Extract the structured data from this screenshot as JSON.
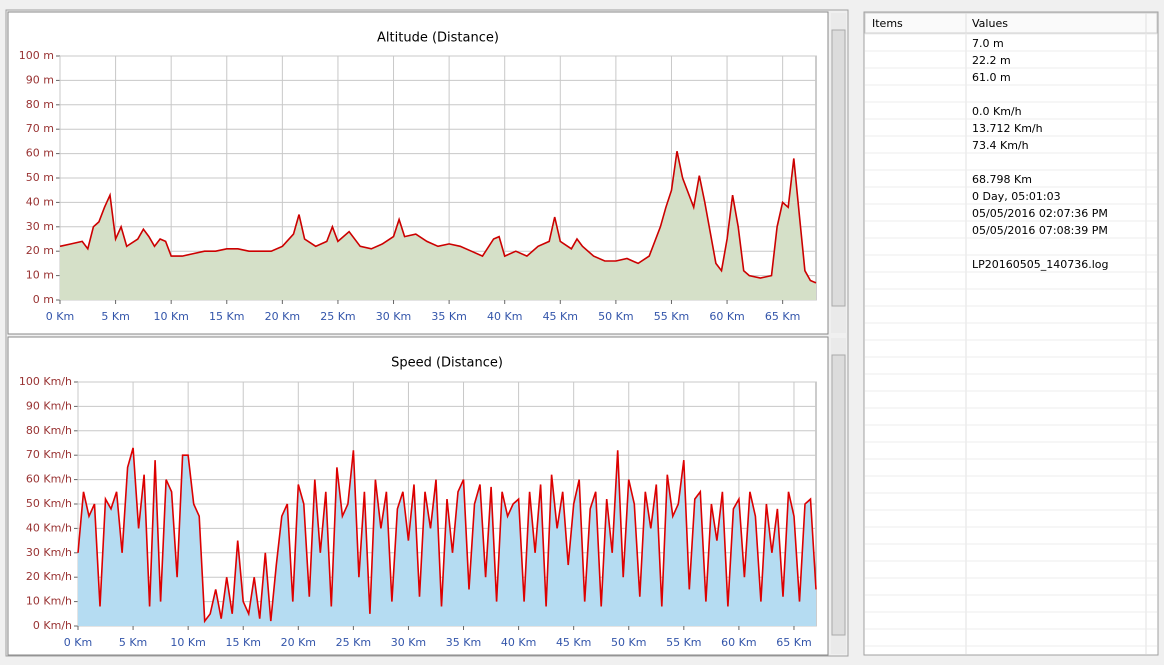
{
  "chart_data": [
    {
      "type": "line",
      "title": "Altitude (Distance)",
      "line_color": "#cc0000",
      "fill_color": "#d5e0c8",
      "grid": true,
      "xlim": [
        0,
        68
      ],
      "ylim": [
        0,
        100
      ],
      "xticks": [
        {
          "value": 0,
          "label": "0 Km"
        },
        {
          "value": 5,
          "label": "5 Km"
        },
        {
          "value": 10,
          "label": "10 Km"
        },
        {
          "value": 15,
          "label": "15 Km"
        },
        {
          "value": 20,
          "label": "20 Km"
        },
        {
          "value": 25,
          "label": "25 Km"
        },
        {
          "value": 30,
          "label": "30 Km"
        },
        {
          "value": 35,
          "label": "35 Km"
        },
        {
          "value": 40,
          "label": "40 Km"
        },
        {
          "value": 45,
          "label": "45 Km"
        },
        {
          "value": 50,
          "label": "50 Km"
        },
        {
          "value": 55,
          "label": "55 Km"
        },
        {
          "value": 60,
          "label": "60 Km"
        },
        {
          "value": 65,
          "label": "65 Km"
        }
      ],
      "yticks": [
        {
          "value": 0,
          "label": "0 m"
        },
        {
          "value": 10,
          "label": "10 m"
        },
        {
          "value": 20,
          "label": "20 m"
        },
        {
          "value": 30,
          "label": "30 m"
        },
        {
          "value": 40,
          "label": "40 m"
        },
        {
          "value": 50,
          "label": "50 m"
        },
        {
          "value": 60,
          "label": "60 m"
        },
        {
          "value": 70,
          "label": "70 m"
        },
        {
          "value": 80,
          "label": "80 m"
        },
        {
          "value": 90,
          "label": "90 m"
        },
        {
          "value": 100,
          "label": "100 m"
        }
      ],
      "x": [
        0,
        1,
        2,
        2.5,
        3,
        3.5,
        4,
        4.5,
        5,
        5.5,
        6,
        7,
        7.5,
        8,
        8.5,
        9,
        9.5,
        10,
        11,
        12,
        13,
        14,
        15,
        16,
        17,
        18,
        19,
        20,
        21,
        21.5,
        22,
        23,
        24,
        24.5,
        25,
        26,
        27,
        28,
        29,
        30,
        30.5,
        31,
        32,
        33,
        34,
        35,
        36,
        37,
        38,
        39,
        39.5,
        40,
        41,
        42,
        43,
        44,
        44.5,
        45,
        46,
        46.5,
        47,
        48,
        49,
        50,
        51,
        52,
        53,
        54,
        54.5,
        55,
        55.5,
        56,
        57,
        57.5,
        58,
        59,
        59.5,
        60,
        60.5,
        61,
        61.5,
        62,
        63,
        64,
        64.5,
        65,
        65.5,
        66,
        66.5,
        67,
        67.5,
        68
      ],
      "values": [
        22,
        23,
        24,
        21,
        30,
        32,
        38,
        43,
        25,
        30,
        22,
        25,
        29,
        26,
        22,
        25,
        24,
        18,
        18,
        19,
        20,
        20,
        21,
        21,
        20,
        20,
        20,
        22,
        27,
        35,
        25,
        22,
        24,
        30,
        24,
        28,
        22,
        21,
        23,
        26,
        33,
        26,
        27,
        24,
        22,
        23,
        22,
        20,
        18,
        25,
        26,
        18,
        20,
        18,
        22,
        24,
        34,
        24,
        21,
        25,
        22,
        18,
        16,
        16,
        17,
        15,
        18,
        30,
        38,
        45,
        61,
        50,
        38,
        51,
        40,
        15,
        12,
        25,
        43,
        30,
        12,
        10,
        9,
        10,
        30,
        40,
        38,
        58,
        35,
        12,
        8,
        7
      ]
    },
    {
      "type": "line",
      "title": "Speed (Distance)",
      "line_color": "#dd0000",
      "fill_color": "#b5dcf2",
      "grid": true,
      "xlim": [
        0,
        67
      ],
      "ylim": [
        0,
        100
      ],
      "xticks": [
        {
          "value": 0,
          "label": "0 Km"
        },
        {
          "value": 5,
          "label": "5 Km"
        },
        {
          "value": 10,
          "label": "10 Km"
        },
        {
          "value": 15,
          "label": "15 Km"
        },
        {
          "value": 20,
          "label": "20 Km"
        },
        {
          "value": 25,
          "label": "25 Km"
        },
        {
          "value": 30,
          "label": "30 Km"
        },
        {
          "value": 35,
          "label": "35 Km"
        },
        {
          "value": 40,
          "label": "40 Km"
        },
        {
          "value": 45,
          "label": "45 Km"
        },
        {
          "value": 50,
          "label": "50 Km"
        },
        {
          "value": 55,
          "label": "55 Km"
        },
        {
          "value": 60,
          "label": "60 Km"
        },
        {
          "value": 65,
          "label": "65 Km"
        }
      ],
      "yticks": [
        {
          "value": 0,
          "label": "0 Km/h"
        },
        {
          "value": 10,
          "label": "10 Km/h"
        },
        {
          "value": 20,
          "label": "20 Km/h"
        },
        {
          "value": 30,
          "label": "30 Km/h"
        },
        {
          "value": 40,
          "label": "40 Km/h"
        },
        {
          "value": 50,
          "label": "50 Km/h"
        },
        {
          "value": 60,
          "label": "60 Km/h"
        },
        {
          "value": 70,
          "label": "70 Km/h"
        },
        {
          "value": 80,
          "label": "80 Km/h"
        },
        {
          "value": 90,
          "label": "90 Km/h"
        },
        {
          "value": 100,
          "label": "100 Km/h"
        }
      ],
      "x": [
        0,
        0.5,
        1,
        1.5,
        2,
        2.5,
        3,
        3.5,
        4,
        4.5,
        5,
        5.5,
        6,
        6.5,
        7,
        7.5,
        8,
        8.5,
        9,
        9.5,
        10,
        10.5,
        11,
        11.5,
        12,
        12.5,
        13,
        13.5,
        14,
        14.5,
        15,
        15.5,
        16,
        16.5,
        17,
        17.5,
        18,
        18.5,
        19,
        19.5,
        20,
        20.5,
        21,
        21.5,
        22,
        22.5,
        23,
        23.5,
        24,
        24.5,
        25,
        25.5,
        26,
        26.5,
        27,
        27.5,
        28,
        28.5,
        29,
        29.5,
        30,
        30.5,
        31,
        31.5,
        32,
        32.5,
        33,
        33.5,
        34,
        34.5,
        35,
        35.5,
        36,
        36.5,
        37,
        37.5,
        38,
        38.5,
        39,
        39.5,
        40,
        40.5,
        41,
        41.5,
        42,
        42.5,
        43,
        43.5,
        44,
        44.5,
        45,
        45.5,
        46,
        46.5,
        47,
        47.5,
        48,
        48.5,
        49,
        49.5,
        50,
        50.5,
        51,
        51.5,
        52,
        52.5,
        53,
        53.5,
        54,
        54.5,
        55,
        55.5,
        56,
        56.5,
        57,
        57.5,
        58,
        58.5,
        59,
        59.5,
        60,
        60.5,
        61,
        61.5,
        62,
        62.5,
        63,
        63.5,
        64,
        64.5,
        65,
        65.5,
        66,
        66.5,
        67
      ],
      "values": [
        30,
        55,
        45,
        50,
        8,
        52,
        48,
        55,
        30,
        65,
        73,
        40,
        62,
        8,
        68,
        10,
        60,
        55,
        20,
        70,
        70,
        50,
        45,
        2,
        5,
        15,
        3,
        20,
        5,
        35,
        10,
        5,
        20,
        3,
        30,
        2,
        25,
        45,
        50,
        10,
        58,
        50,
        12,
        60,
        30,
        55,
        8,
        65,
        45,
        50,
        72,
        20,
        55,
        5,
        60,
        40,
        55,
        10,
        48,
        55,
        35,
        58,
        12,
        55,
        40,
        60,
        8,
        52,
        30,
        55,
        60,
        15,
        50,
        58,
        20,
        57,
        10,
        55,
        45,
        50,
        52,
        10,
        55,
        30,
        58,
        8,
        62,
        40,
        55,
        25,
        50,
        60,
        10,
        48,
        55,
        8,
        52,
        30,
        72,
        20,
        60,
        50,
        12,
        55,
        40,
        58,
        8,
        62,
        45,
        50,
        68,
        15,
        52,
        55,
        10,
        50,
        35,
        55,
        8,
        48,
        52,
        20,
        55,
        45,
        10,
        50,
        30,
        48,
        12,
        55,
        45,
        10,
        50,
        52,
        15
      ]
    }
  ],
  "table": {
    "header": [
      "Items",
      "Values"
    ],
    "groups": [
      [
        "7.0 m",
        "22.2 m",
        "61.0 m"
      ],
      [
        "0.0 Km/h",
        "13.712 Km/h",
        "73.4 Km/h"
      ],
      [
        "68.798 Km",
        "0 Day, 05:01:03",
        "05/05/2016 02:07:36 PM",
        "05/05/2016 07:08:39 PM"
      ],
      [
        "LP20160505_140736.log"
      ]
    ]
  }
}
